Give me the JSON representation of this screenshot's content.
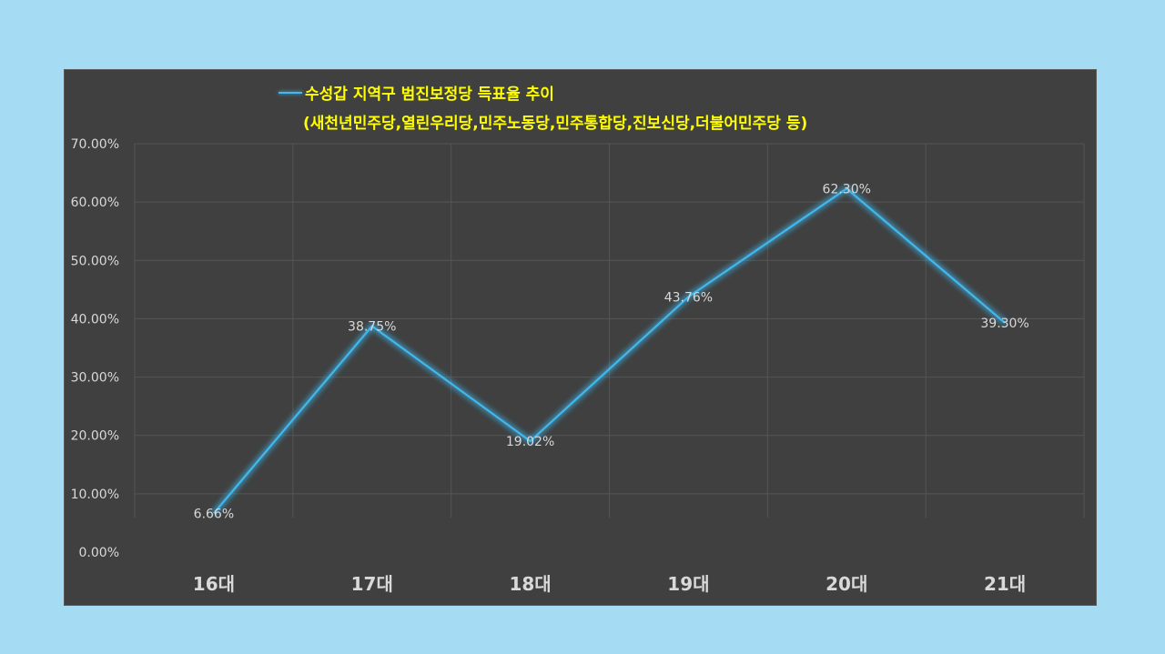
{
  "chart_data": {
    "type": "line",
    "title": "수성갑 지역구 범진보정당 득표율 추이",
    "subtitle": "(새천년민주당,열린우리당,민주노동당,민주통합당,진보신당,더불어민주당 등)",
    "xlabel": "",
    "ylabel": "",
    "categories": [
      "16대",
      "17대",
      "18대",
      "19대",
      "20대",
      "21대"
    ],
    "y_ticks": [
      "0.00%",
      "10.00%",
      "20.00%",
      "30.00%",
      "40.00%",
      "50.00%",
      "60.00%",
      "70.00%"
    ],
    "ylim": [
      0,
      70
    ],
    "grid": true,
    "legend_placement": "top-left",
    "series": [
      {
        "name": "수성갑 지역구 범진보정당 득표율 추이",
        "values": [
          6.66,
          38.75,
          19.02,
          43.76,
          62.3,
          39.3
        ],
        "labels": [
          "6.66%",
          "38.75%",
          "19.02%",
          "43.76%",
          "62.30%",
          "39.30%"
        ],
        "color": "#41b8ee"
      }
    ]
  },
  "colors": {
    "page_background": "#a6dcf3",
    "panel_background": "#404040",
    "title": "#ffff00",
    "line": "#41b8ee"
  }
}
